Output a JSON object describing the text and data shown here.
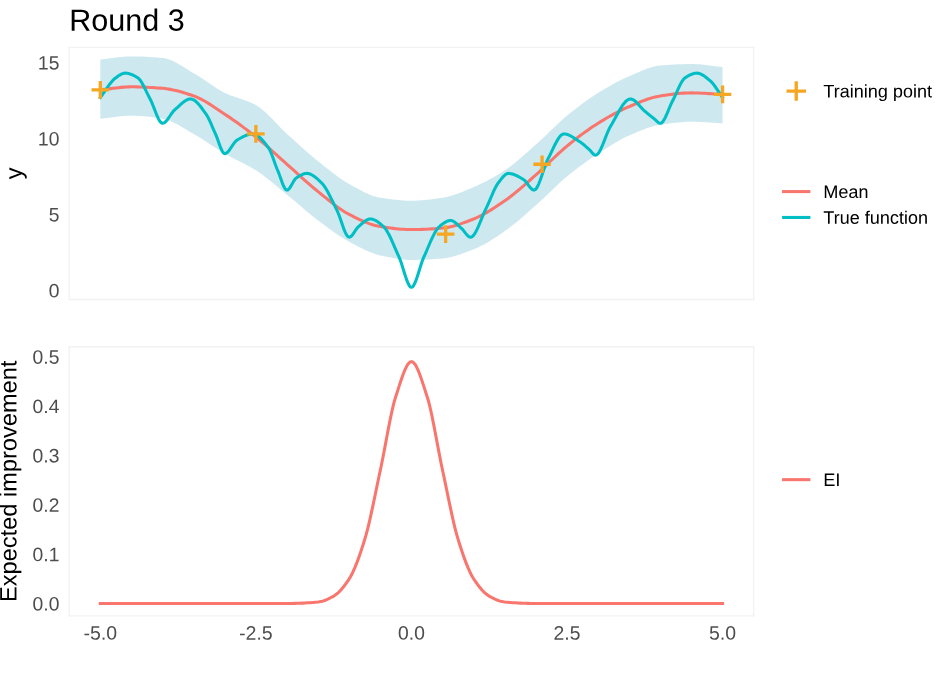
{
  "chart_data": [
    {
      "type": "line",
      "title": "Round 3",
      "ylabel": "y",
      "xlim": [
        -5.5,
        5.5
      ],
      "ylim": [
        -0.6,
        16.0
      ],
      "yticks": [
        0,
        5,
        10,
        15
      ],
      "tick_labels": "y",
      "grid": false,
      "legend": "right",
      "series": [
        {
          "name": "Mean",
          "color": "#f8766d",
          "x": [
            -5,
            -4.5,
            -4,
            -3.5,
            -3,
            -2.5,
            -2,
            -1.5,
            -1,
            -0.5,
            0,
            0.5,
            1,
            1.5,
            2,
            2.5,
            3,
            3.5,
            4,
            4.5,
            5
          ],
          "values": [
            13.2,
            13.4,
            13.3,
            12.8,
            11.6,
            10.1,
            8.3,
            6.5,
            5.0,
            4.2,
            4.0,
            4.1,
            4.7,
            5.9,
            7.6,
            9.5,
            11.0,
            12.1,
            12.8,
            13.0,
            12.9
          ],
          "lower": [
            11.3,
            11.5,
            11.3,
            10.3,
            9.0,
            7.9,
            6.3,
            4.6,
            3.2,
            2.3,
            2.0,
            2.1,
            2.7,
            3.9,
            5.6,
            7.5,
            9.0,
            10.2,
            10.9,
            11.1,
            11.0
          ],
          "upper": [
            15.2,
            15.4,
            15.3,
            14.3,
            13.0,
            12.2,
            10.3,
            8.5,
            7.0,
            6.1,
            5.9,
            6.1,
            6.8,
            7.9,
            9.6,
            11.5,
            13.0,
            14.1,
            14.8,
            14.9,
            14.7
          ]
        },
        {
          "name": "True function",
          "color": "#00bfc4",
          "x": [
            -5,
            -4.75,
            -4.6,
            -4.4,
            -4.2,
            -4,
            -3.8,
            -3.55,
            -3.3,
            -3.15,
            -3,
            -2.8,
            -2.55,
            -2.3,
            -2.15,
            -2,
            -1.85,
            -1.68,
            -1.45,
            -1.2,
            -1,
            -0.85,
            -0.66,
            -0.45,
            -0.2,
            0,
            0.2,
            0.45,
            0.63,
            0.8,
            0.95,
            1.2,
            1.4,
            1.56,
            1.8,
            1.97,
            2.2,
            2.45,
            2.7,
            2.85,
            2.96,
            3.2,
            3.52,
            3.75,
            3.9,
            4.0,
            4.2,
            4.4,
            4.59,
            4.8,
            5
          ],
          "values": [
            12.7,
            14.0,
            14.3,
            14.0,
            12.6,
            11.0,
            11.9,
            12.6,
            11.6,
            10.3,
            9.0,
            9.9,
            10.3,
            9.4,
            7.9,
            6.6,
            7.4,
            7.7,
            7.1,
            5.3,
            3.5,
            4.2,
            4.7,
            4.2,
            2.2,
            0.2,
            2.2,
            4.2,
            4.6,
            4.1,
            3.5,
            5.4,
            7.1,
            7.7,
            7.3,
            6.6,
            8.7,
            10.3,
            9.8,
            9.3,
            8.9,
            10.8,
            12.6,
            11.8,
            11.3,
            11.0,
            12.5,
            14.0,
            14.3,
            13.8,
            12.7
          ]
        },
        {
          "name": "Training point",
          "type": "scatter",
          "color": "#f5a623",
          "marker": "cross",
          "x": [
            -5,
            -2.5,
            0.55,
            2.1,
            5
          ],
          "values": [
            13.2,
            10.3,
            3.7,
            8.3,
            12.9
          ]
        }
      ]
    },
    {
      "type": "line",
      "ylabel": "Expected improvement",
      "xlim": [
        -5.5,
        5.5
      ],
      "xticks": [
        {
          "value": -5,
          "label": "-5.0"
        },
        {
          "value": -2.5,
          "label": "-2.5"
        },
        {
          "value": 0,
          "label": "0.0"
        },
        {
          "value": 2.5,
          "label": "2.5"
        },
        {
          "value": 5,
          "label": "5.0"
        }
      ],
      "ylim": [
        -0.025,
        0.52
      ],
      "yticks": [
        {
          "value": 0,
          "label": "0.0"
        },
        0.1,
        0.2,
        0.3,
        0.4,
        0.5
      ],
      "grid": false,
      "legend": "right",
      "series": [
        {
          "name": "EI",
          "color": "#f8766d",
          "x": [
            -5,
            -2,
            -1.5,
            -1.25,
            -1,
            -0.75,
            -0.5,
            -0.25,
            0,
            0.25,
            0.5,
            0.75,
            1,
            1.25,
            1.5,
            2,
            5
          ],
          "values": [
            0,
            0,
            0.003,
            0.015,
            0.05,
            0.13,
            0.27,
            0.42,
            0.49,
            0.42,
            0.27,
            0.13,
            0.05,
            0.015,
            0.003,
            0,
            0
          ]
        }
      ]
    }
  ]
}
